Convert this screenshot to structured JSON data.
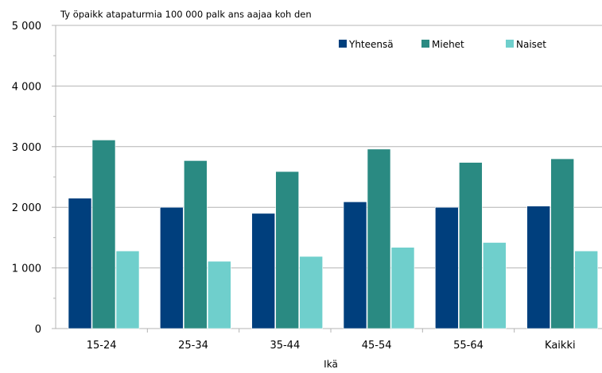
{
  "chart_data": {
    "type": "bar",
    "title": "Ty öpaikk atapaturmia 100 000  palk ans aajaa koh den",
    "xlabel": "Ikä",
    "ylabel": "",
    "categories": [
      "15-24",
      "25-34",
      "35-44",
      "45-54",
      "55-64",
      "Kaikki"
    ],
    "series": [
      {
        "name": "Yhteensä",
        "color": "#003f7d",
        "values": [
          2150,
          2000,
          1900,
          2090,
          2000,
          2020
        ]
      },
      {
        "name": "Miehet",
        "color": "#2a8a82",
        "values": [
          3110,
          2770,
          2590,
          2960,
          2740,
          2800
        ]
      },
      {
        "name": "Naiset",
        "color": "#6fcfcc",
        "values": [
          1280,
          1110,
          1190,
          1340,
          1420,
          1280
        ]
      }
    ],
    "ylim": [
      0,
      5000
    ],
    "yticks": [
      0,
      1000,
      2000,
      3000,
      4000,
      5000
    ],
    "ytick_labels": [
      "0",
      "1 000",
      "2 000",
      "3 000",
      "4 000",
      "5 000"
    ],
    "grid": true,
    "legend_position": "top-right"
  }
}
